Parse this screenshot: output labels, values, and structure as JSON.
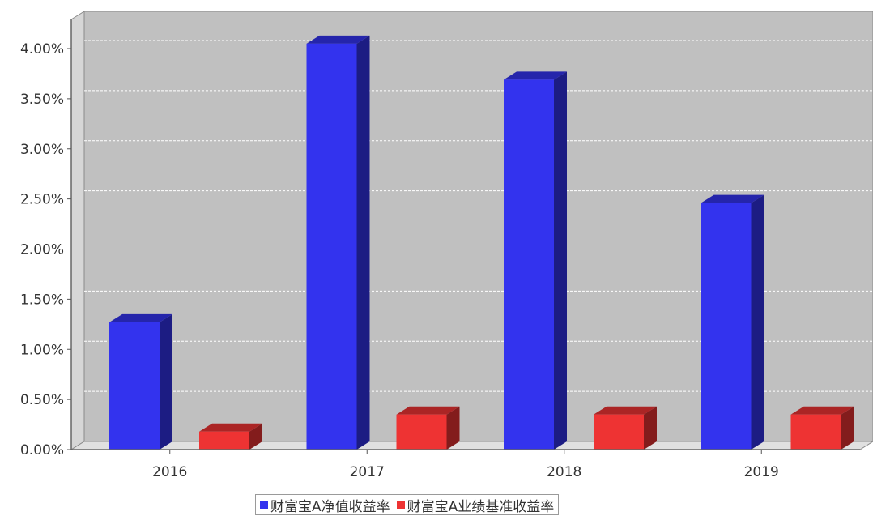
{
  "chart_data": {
    "type": "bar",
    "title": "",
    "xlabel": "",
    "ylabel": "",
    "categories": [
      "2016",
      "2017",
      "2018",
      "2019"
    ],
    "series": [
      {
        "name": "财富宝A净值收益率",
        "color": "#3333ee",
        "values": [
          1.27,
          4.05,
          3.69,
          2.46
        ]
      },
      {
        "name": "财富宝A业绩基准收益率",
        "color": "#ee3333",
        "values": [
          0.18,
          0.35,
          0.35,
          0.35
        ]
      }
    ],
    "ylim": [
      0,
      4.0
    ],
    "yticks": [
      "0.00%",
      "0.50%",
      "1.00%",
      "1.50%",
      "2.00%",
      "2.50%",
      "3.00%",
      "3.50%",
      "4.00%"
    ],
    "grid": true,
    "legend_position": "bottom",
    "style": "3d-bar"
  }
}
